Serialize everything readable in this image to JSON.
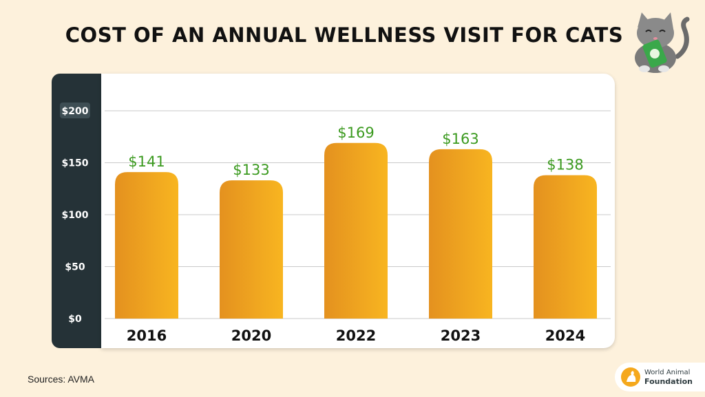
{
  "title": "COST OF AN ANNUAL WELLNESS VISIT FOR CATS",
  "source": "Sources: AVMA",
  "logo": {
    "line1": "World Animal",
    "line2": "Foundation",
    "icon": "pet-silhouette-icon"
  },
  "mascot": {
    "icon": "cat-holding-money-icon"
  },
  "colors": {
    "background": "#fdf1dc",
    "axis_panel": "#253237",
    "bar_light": "#f8b520",
    "bar_dark": "#e4911f",
    "value_label": "#3b9a1f",
    "highlight_tick": "#3e4e54"
  },
  "chart_data": {
    "type": "bar",
    "title": "COST OF AN ANNUAL WELLNESS VISIT FOR CATS",
    "xlabel": "",
    "ylabel": "",
    "categories": [
      "2016",
      "2020",
      "2022",
      "2023",
      "2024"
    ],
    "values": [
      141,
      133,
      169,
      163,
      138
    ],
    "value_labels": [
      "$141",
      "$133",
      "$169",
      "$163",
      "$138"
    ],
    "ylim": [
      0,
      200
    ],
    "yticks": [
      0,
      50,
      100,
      150,
      200
    ],
    "ytick_labels": [
      "$0",
      "$50",
      "$100",
      "$150",
      "$200"
    ],
    "grid": true,
    "legend": "none"
  }
}
